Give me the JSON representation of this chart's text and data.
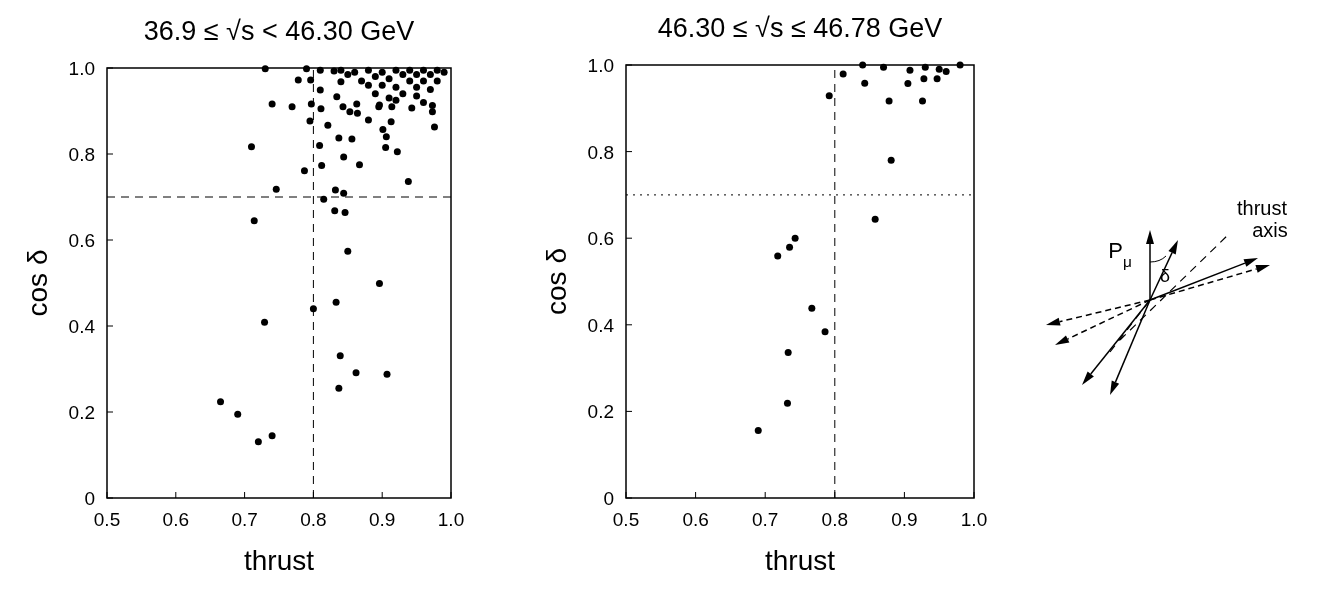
{
  "chart_data": [
    {
      "type": "scatter",
      "title": "36.9 ≤ √s < 46.30 GeV",
      "xlabel": "thrust",
      "ylabel": "cos δ",
      "xlim": [
        0.5,
        1.0
      ],
      "ylim": [
        0,
        1.0
      ],
      "xticks": [
        0.5,
        0.6,
        0.7,
        0.8,
        0.9,
        {
          "value": 1.0,
          "label": "1.0"
        }
      ],
      "yticks": [
        0,
        0.2,
        0.4,
        0.6,
        0.8,
        {
          "value": 1.0,
          "label": "1.0"
        }
      ],
      "marker": "circle",
      "ref_lines": [
        {
          "axis": "y",
          "value": 0.7,
          "line_style": "dashed"
        },
        {
          "axis": "x",
          "value": 0.8,
          "line_style": "dashed"
        }
      ],
      "series": [
        {
          "color": "#000000",
          "x": [
            0.665,
            0.69,
            0.72,
            0.74,
            0.729,
            0.8,
            0.833,
            0.839,
            0.862,
            0.907,
            0.837,
            0.71,
            0.714,
            0.746,
            0.787,
            0.812,
            0.844,
            0.867,
            0.85,
            0.896,
            0.815,
            0.832,
            0.831,
            0.846,
            0.844,
            0.938,
            0.922,
            0.905,
            0.906,
            0.901,
            0.913,
            0.856,
            0.837,
            0.821,
            0.795,
            0.809,
            0.769,
            0.74,
            0.797,
            0.811,
            0.843,
            0.863,
            0.853,
            0.864,
            0.88,
            0.895,
            0.914,
            0.943,
            0.778,
            0.796,
            0.81,
            0.84,
            0.834,
            0.976,
            0.973,
            0.973,
            0.896,
            0.86,
            0.87,
            0.88,
            0.88,
            0.89,
            0.89,
            0.9,
            0.9,
            0.91,
            0.91,
            0.92,
            0.92,
            0.93,
            0.93,
            0.94,
            0.94,
            0.95,
            0.95,
            0.96,
            0.96,
            0.97,
            0.97,
            0.98,
            0.98,
            0.99,
            0.85,
            0.84,
            0.92,
            0.95,
            0.96,
            0.73,
            0.79,
            0.81,
            0.83
          ],
          "values": [
            0.224,
            0.195,
            0.131,
            0.145,
            0.409,
            0.44,
            0.455,
            0.331,
            0.291,
            0.288,
            0.255,
            0.817,
            0.645,
            0.718,
            0.761,
            0.773,
            0.793,
            0.775,
            0.574,
            0.499,
            0.695,
            0.716,
            0.668,
            0.664,
            0.709,
            0.736,
            0.805,
            0.815,
            0.84,
            0.857,
            0.875,
            0.835,
            0.837,
            0.867,
            0.877,
            0.82,
            0.91,
            0.916,
            0.916,
            0.905,
            0.91,
            0.916,
            0.898,
            0.895,
            0.879,
            0.91,
            0.91,
            0.907,
            0.972,
            0.972,
            0.949,
            0.968,
            0.933,
            0.863,
            0.898,
            0.913,
            0.914,
            0.99,
            0.97,
            0.995,
            0.96,
            0.98,
            0.94,
            0.99,
            0.96,
            0.975,
            0.93,
            0.995,
            0.955,
            0.985,
            0.94,
            0.97,
            0.995,
            0.985,
            0.955,
            0.995,
            0.97,
            0.985,
            0.95,
            0.995,
            0.97,
            0.99,
            0.985,
            0.995,
            0.925,
            0.935,
            0.92,
            0.998,
            0.998,
            0.995,
            0.993
          ]
        }
      ]
    },
    {
      "type": "scatter",
      "title": "46.30 ≤ √s ≤ 46.78 GeV",
      "xlabel": "thrust",
      "ylabel": "cos δ",
      "xlim": [
        0.5,
        1.0
      ],
      "ylim": [
        0,
        1.0
      ],
      "xticks": [
        0.5,
        0.6,
        0.7,
        0.8,
        0.9,
        {
          "value": 1.0,
          "label": "1.0"
        }
      ],
      "yticks": [
        0,
        0.2,
        0.4,
        0.6,
        0.8,
        {
          "value": 1.0,
          "label": "1.0"
        }
      ],
      "marker": "circle",
      "ref_lines": [
        {
          "axis": "x",
          "value": 0.8,
          "line_style": "dashed"
        },
        {
          "axis": "y",
          "value": 0.7,
          "line_style": "dotted"
        }
      ],
      "series": [
        {
          "color": "#000000",
          "x": [
            0.69,
            0.732,
            0.733,
            0.767,
            0.786,
            0.718,
            0.735,
            0.743,
            0.792,
            0.812,
            0.843,
            0.878,
            0.926,
            0.905,
            0.908,
            0.928,
            0.947,
            0.881,
            0.858,
            0.87,
            0.93,
            0.95,
            0.96,
            0.98,
            0.84
          ],
          "values": [
            0.156,
            0.219,
            0.336,
            0.438,
            0.384,
            0.559,
            0.579,
            0.6,
            0.929,
            0.979,
            0.958,
            0.917,
            0.917,
            0.957,
            0.988,
            0.968,
            0.968,
            0.78,
            0.644,
            0.995,
            0.995,
            0.99,
            0.985,
            1.0,
            1.0
          ]
        }
      ]
    },
    {
      "type": "other",
      "annotations": [
        "P$_{μ}$",
        "δ",
        "thrust axis"
      ]
    }
  ]
}
